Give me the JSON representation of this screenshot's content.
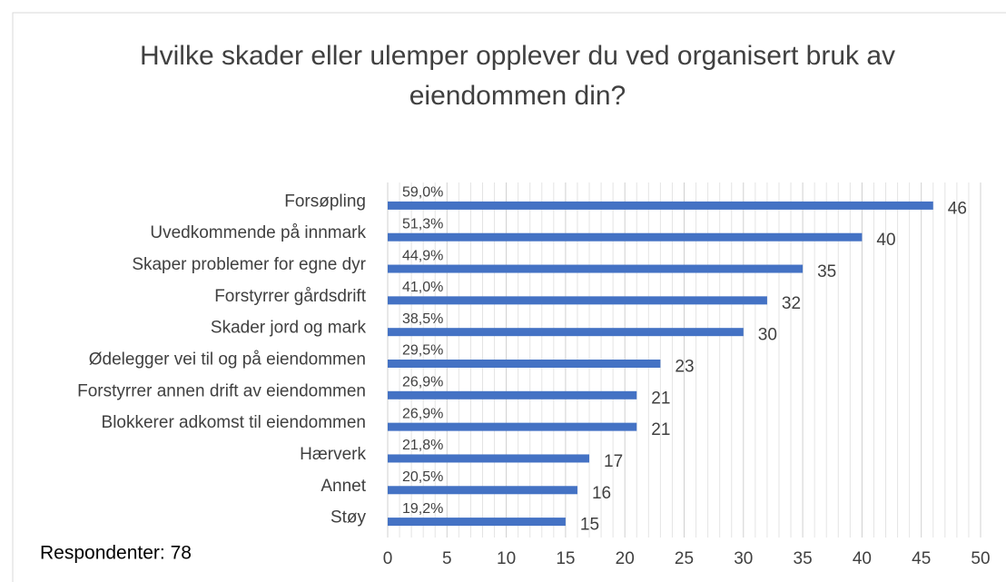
{
  "chart_data": {
    "type": "bar",
    "orientation": "horizontal",
    "title": "Hvilke skader eller ulemper opplever du ved organisert bruk av eiendommen din?",
    "annotation": "Respondenter: 78",
    "categories": [
      "Forsøpling",
      "Uvedkommende på innmark",
      "Skaper problemer for egne dyr",
      "Forstyrrer gårdsdrift",
      "Skader jord og mark",
      "Ødelegger vei til og på eiendommen",
      "Forstyrrer annen drift av eiendommen",
      "Blokkerer adkomst til eiendommen",
      "Hærverk",
      "Annet",
      "Støy"
    ],
    "series": [
      {
        "color": "#4472c4",
        "values": [
          46,
          40,
          35,
          32,
          30,
          23,
          21,
          21,
          17,
          16,
          15
        ]
      },
      {
        "values": [
          59.0,
          51.3,
          44.9,
          41.0,
          38.5,
          29.5,
          26.9,
          26.9,
          21.8,
          20.5,
          19.2
        ],
        "value_labels": [
          "59,0%",
          "51,3%",
          "44,9%",
          "41,0%",
          "38,5%",
          "29,5%",
          "26,9%",
          "26,9%",
          "21,8%",
          "20,5%",
          "19,2%"
        ]
      }
    ],
    "xlim": [
      0,
      50
    ],
    "xticks": [
      0,
      5,
      10,
      15,
      20,
      25,
      30,
      35,
      40,
      45,
      50
    ],
    "grid": true
  }
}
